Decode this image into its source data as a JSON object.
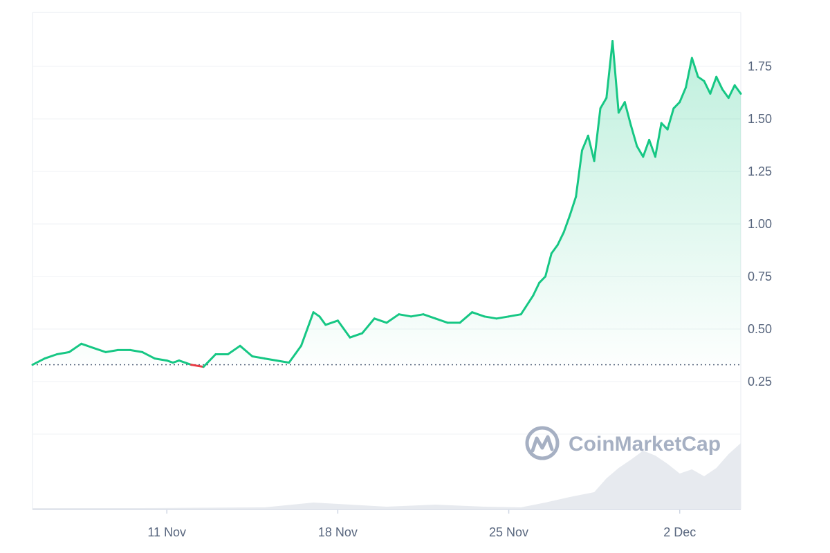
{
  "watermark": {
    "text": "CoinMarketCap",
    "icon": "coinmarketcap-logo-icon"
  },
  "colors": {
    "up": "#16c784",
    "down": "#ea3943",
    "grid": "#eff2f5",
    "axis_text": "#58667e",
    "volume": "#e7eaef",
    "baseline": "#58667e"
  },
  "chart_data": {
    "type": "line",
    "baseline": 0.33,
    "ylim": [
      0,
      2.0
    ],
    "yticks": [
      0.25,
      0.5,
      0.75,
      1.0,
      1.25,
      1.5,
      1.75
    ],
    "ytick_labels": [
      "0.25",
      "0.50",
      "0.75",
      "1.00",
      "1.25",
      "1.50",
      "1.75"
    ],
    "xlim": [
      "2024-11-05 12:00",
      "2024-12-04 12:00"
    ],
    "xticks": [
      "2024-11-11",
      "2024-11-18",
      "2024-11-25",
      "2024-12-02"
    ],
    "xtick_labels": [
      "11 Nov",
      "18 Nov",
      "25 Nov",
      "2 Dec"
    ],
    "grid": "horizontal",
    "series": [
      {
        "x": [
          "2024-11-05 12:00",
          "2024-11-06 00:00",
          "2024-11-06 12:00",
          "2024-11-07 00:00",
          "2024-11-07 12:00",
          "2024-11-08 00:00",
          "2024-11-08 12:00",
          "2024-11-09 00:00",
          "2024-11-09 12:00",
          "2024-11-10 00:00",
          "2024-11-10 12:00",
          "2024-11-11 00:00",
          "2024-11-11 06:00",
          "2024-11-11 12:00",
          "2024-11-12 00:00",
          "2024-11-12 12:00",
          "2024-11-13 00:00",
          "2024-11-13 12:00",
          "2024-11-14 00:00",
          "2024-11-14 12:00",
          "2024-11-15 00:00",
          "2024-11-15 12:00",
          "2024-11-16 00:00",
          "2024-11-16 06:00",
          "2024-11-16 12:00",
          "2024-11-17 00:00",
          "2024-11-17 06:00",
          "2024-11-17 12:00",
          "2024-11-18 00:00",
          "2024-11-18 06:00",
          "2024-11-18 12:00",
          "2024-11-19 00:00",
          "2024-11-19 12:00",
          "2024-11-20 00:00",
          "2024-11-20 12:00",
          "2024-11-21 00:00",
          "2024-11-21 12:00",
          "2024-11-22 00:00",
          "2024-11-22 12:00",
          "2024-11-23 00:00",
          "2024-11-23 12:00",
          "2024-11-24 00:00",
          "2024-11-24 12:00",
          "2024-11-25 00:00",
          "2024-11-25 12:00",
          "2024-11-26 00:00",
          "2024-11-26 06:00",
          "2024-11-26 12:00",
          "2024-11-26 18:00",
          "2024-11-27 00:00",
          "2024-11-27 06:00",
          "2024-11-27 12:00",
          "2024-11-27 18:00",
          "2024-11-28 00:00",
          "2024-11-28 06:00",
          "2024-11-28 12:00",
          "2024-11-28 18:00",
          "2024-11-29 00:00",
          "2024-11-29 06:00",
          "2024-11-29 12:00",
          "2024-11-29 18:00",
          "2024-11-30 00:00",
          "2024-11-30 06:00",
          "2024-11-30 12:00",
          "2024-11-30 18:00",
          "2024-12-01 00:00",
          "2024-12-01 06:00",
          "2024-12-01 12:00",
          "2024-12-01 18:00",
          "2024-12-02 00:00",
          "2024-12-02 06:00",
          "2024-12-02 12:00",
          "2024-12-02 18:00",
          "2024-12-03 00:00",
          "2024-12-03 06:00",
          "2024-12-03 12:00",
          "2024-12-03 18:00",
          "2024-12-04 00:00",
          "2024-12-04 06:00",
          "2024-12-04 12:00"
        ],
        "values": [
          0.33,
          0.36,
          0.38,
          0.39,
          0.43,
          0.41,
          0.39,
          0.4,
          0.4,
          0.39,
          0.36,
          0.35,
          0.34,
          0.35,
          0.33,
          0.32,
          0.38,
          0.38,
          0.42,
          0.37,
          0.36,
          0.35,
          0.34,
          0.38,
          0.42,
          0.58,
          0.56,
          0.52,
          0.54,
          0.5,
          0.46,
          0.48,
          0.55,
          0.53,
          0.57,
          0.56,
          0.57,
          0.55,
          0.53,
          0.53,
          0.58,
          0.56,
          0.55,
          0.56,
          0.57,
          0.66,
          0.72,
          0.75,
          0.86,
          0.9,
          0.96,
          1.04,
          1.13,
          1.35,
          1.42,
          1.3,
          1.55,
          1.6,
          1.87,
          1.53,
          1.58,
          1.47,
          1.37,
          1.32,
          1.4,
          1.32,
          1.48,
          1.45,
          1.55,
          1.58,
          1.65,
          1.79,
          1.7,
          1.68,
          1.62,
          1.7,
          1.64,
          1.6,
          1.66,
          1.62
        ]
      }
    ],
    "volume": {
      "x": [
        "2024-11-05 12:00",
        "2024-11-10 00:00",
        "2024-11-15 00:00",
        "2024-11-17 00:00",
        "2024-11-18 00:00",
        "2024-11-20 00:00",
        "2024-11-22 00:00",
        "2024-11-24 00:00",
        "2024-11-25 12:00",
        "2024-11-26 12:00",
        "2024-11-27 12:00",
        "2024-11-28 12:00",
        "2024-11-29 00:00",
        "2024-11-29 12:00",
        "2024-11-30 00:00",
        "2024-11-30 12:00",
        "2024-12-01 00:00",
        "2024-12-01 12:00",
        "2024-12-02 00:00",
        "2024-12-02 12:00",
        "2024-12-03 00:00",
        "2024-12-03 12:00",
        "2024-12-04 00:00",
        "2024-12-04 12:00"
      ],
      "values": [
        0.02,
        0.02,
        0.03,
        0.1,
        0.08,
        0.04,
        0.07,
        0.04,
        0.03,
        0.1,
        0.18,
        0.25,
        0.45,
        0.6,
        0.72,
        0.85,
        0.78,
        0.66,
        0.52,
        0.58,
        0.48,
        0.6,
        0.8,
        0.96
      ]
    }
  }
}
